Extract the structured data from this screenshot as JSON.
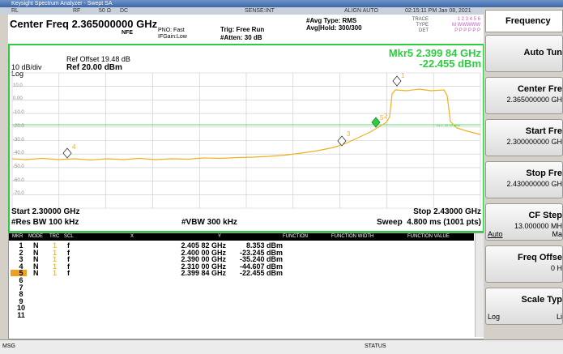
{
  "window_title": "Keysight Spectrum Analyzer - Swept SA",
  "status": [
    "RL",
    "RF",
    "50 Ω",
    "DC",
    "SENSE:INT",
    "ALIGN AUTO",
    "02:15:11 PM Jan 08, 2021"
  ],
  "header": {
    "center_freq": "Center Freq 2.365000000 GHz",
    "nfe": "NFE",
    "pno": "PNO: Fast",
    "ifgain": "IFGain:Low",
    "trig": "Trig: Free Run",
    "atten": "#Atten: 30 dB",
    "avg_type": "#Avg Type: RMS",
    "avg_hold": "Avg|Hold: 300/300",
    "trace_label": "TRACE",
    "trace": "1 2 3 4 5 6",
    "type_label": "TYPE",
    "type": "M WWWWW",
    "det_label": "DET",
    "det": "P P P P P P"
  },
  "plot": {
    "ref_offset": "Ref Offset 19.48 dB",
    "scale": "10 dB/div",
    "log": "Log",
    "ref": "Ref 20.00 dBm",
    "marker_freq": "Mkr5 2.399 84 GHz",
    "marker_level": "-22.455 dBm",
    "y_labels": [
      "10.0",
      "0.00",
      "-10.0",
      "-20.0",
      "-30.0",
      "-40.0",
      "-50.0",
      "-60.0",
      "-70.0"
    ],
    "display_line": "DL1 -20.00 dBm",
    "start": "Start 2.30000 GHz",
    "stop": "Stop 2.43000 GHz",
    "rbw": "#Res BW 100 kHz",
    "vbw": "#VBW 300 kHz",
    "sweep": "Sweep  4.800 ms (1001 pts)"
  },
  "marker_table": {
    "columns": [
      "MKR",
      "MODE",
      "TRC",
      "SCL",
      "X",
      "Y",
      "FUNCTION",
      "FUNCTION WIDTH",
      "FUNCTION VALUE"
    ],
    "rows": [
      [
        "1",
        "N",
        "1",
        "f",
        "2.405 82 GHz",
        "8.353 dBm"
      ],
      [
        "2",
        "N",
        "1",
        "f",
        "2.400 00 GHz",
        "-23.245 dBm"
      ],
      [
        "3",
        "N",
        "1",
        "f",
        "2.390 00 GHz",
        "-35.240 dBm"
      ],
      [
        "4",
        "N",
        "1",
        "f",
        "2.310 00 GHz",
        "-44.607 dBm"
      ],
      [
        "5",
        "N",
        "1",
        "f",
        "2.399 84 GHz",
        "-22.455 dBm"
      ]
    ],
    "empty_rows": [
      "6",
      "7",
      "8",
      "9",
      "10",
      "11"
    ]
  },
  "softkeys": {
    "menu": "Frequency",
    "keys": [
      {
        "label": "Auto Tun"
      },
      {
        "label": "Center Fre",
        "value": "2.365000000 GH"
      },
      {
        "label": "Start Fre",
        "value": "2.300000000 GH"
      },
      {
        "label": "Stop Fre",
        "value": "2.430000000 GH"
      },
      {
        "label": "CF Step",
        "value": "13.000000 MH",
        "options": [
          "Auto",
          "Ma"
        ]
      },
      {
        "label": "Freq Offse",
        "value": "0 H"
      },
      {
        "label": "Scale Typ",
        "options": [
          "Log",
          "Li"
        ]
      }
    ]
  },
  "footer": {
    "msg": "MSG",
    "status": "STATUS"
  }
}
